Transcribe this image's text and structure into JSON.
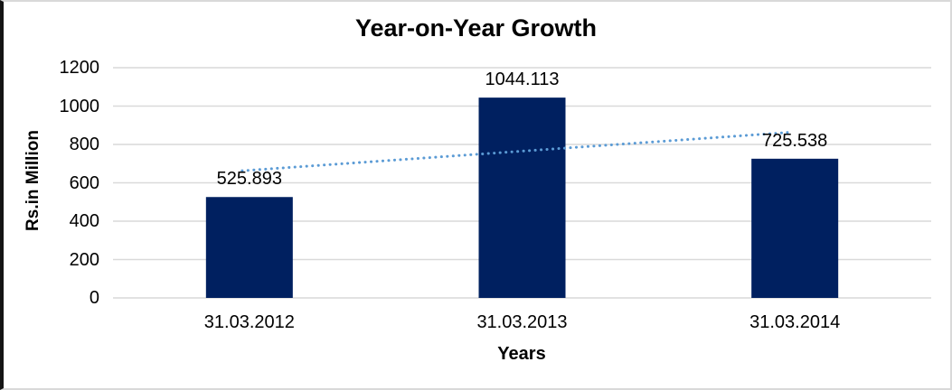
{
  "chart_data": {
    "type": "bar",
    "title": "Year-on-Year Growth",
    "xlabel": "Years",
    "ylabel": "Rs.in Million",
    "categories": [
      "31.03.2012",
      "31.03.2013",
      "31.03.2014"
    ],
    "values": [
      525.893,
      1044.113,
      725.538
    ],
    "data_labels": [
      "525.893",
      "1044.113",
      "725.538"
    ],
    "yticks": [
      0,
      200,
      400,
      600,
      800,
      1000,
      1200
    ],
    "ylim": [
      0,
      1200
    ],
    "grid": "horizontal-gridlines",
    "legend": "none",
    "trendline": {
      "type": "linear",
      "style": "dotted",
      "values_at_categories": [
        665.4,
        765.2,
        864.9
      ]
    },
    "colors": {
      "bar": "#002060",
      "gridline": "#d9d9d9",
      "trendline": "#5b9bd5",
      "text": "#000000",
      "frame_left_border": "#141414",
      "frame_border": "#d9d9d9"
    }
  }
}
